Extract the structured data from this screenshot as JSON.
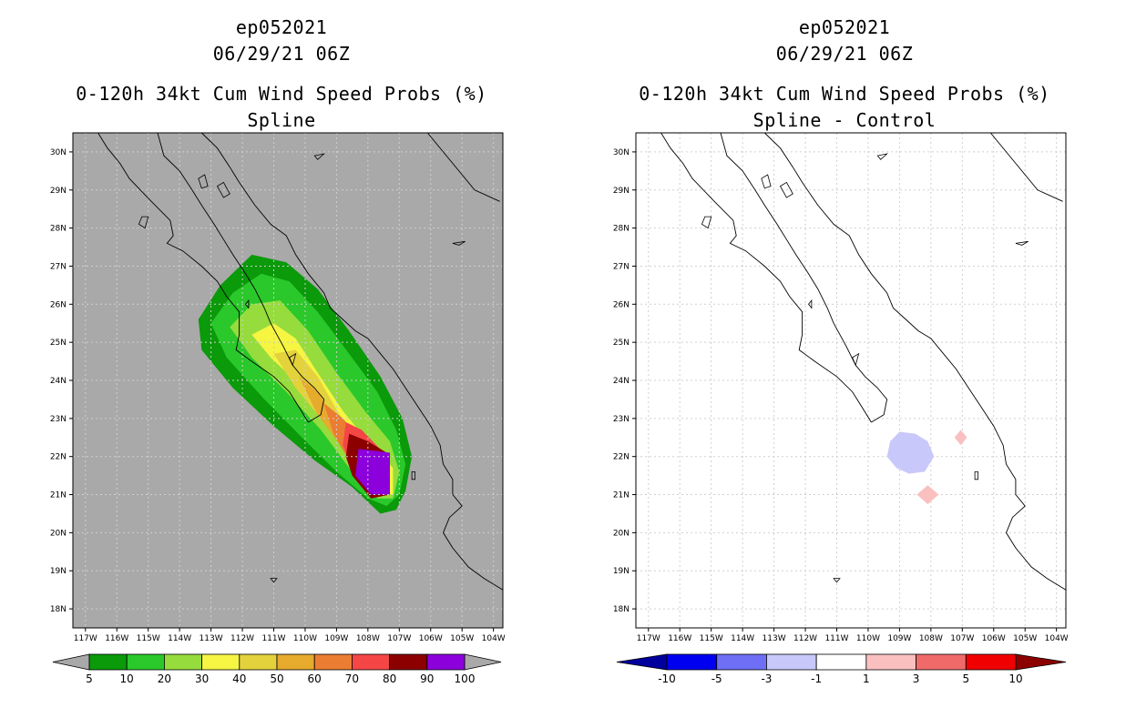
{
  "colors": {
    "land_sea_bg": "#a9a9a9",
    "map_bg_right": "#ffffff",
    "grid": "#cfcfcf"
  },
  "left": {
    "title1": "ep052021",
    "title2": "06/29/21 06Z",
    "title3": "0-120h 34kt Cum Wind Speed Probs (%)",
    "title4": "Spline"
  },
  "right": {
    "title1": "ep052021",
    "title2": "06/29/21 06Z",
    "title3": "0-120h 34kt Cum Wind Speed Probs (%)",
    "title4": "Spline - Control"
  },
  "axes": {
    "lon_labels": [
      "117W",
      "116W",
      "115W",
      "114W",
      "113W",
      "112W",
      "111W",
      "110W",
      "109W",
      "108W",
      "107W",
      "106W",
      "105W",
      "104W"
    ],
    "lat_labels": [
      "30N",
      "29N",
      "28N",
      "27N",
      "26N",
      "25N",
      "24N",
      "23N",
      "22N",
      "21N",
      "20N",
      "19N",
      "18N"
    ]
  },
  "chart_data": [
    {
      "type": "heatmap",
      "title": "0-120h 34kt Cum Wind Speed Probs (%)",
      "subtitle": "Spline",
      "xlim": [
        -117.4,
        -103.7
      ],
      "ylim": [
        17.5,
        30.5
      ],
      "legend": "bottom",
      "levels": [
        5,
        10,
        20,
        30,
        40,
        50,
        60,
        70,
        80,
        90,
        100
      ],
      "level_colors": [
        "#0a9a0a",
        "#2ac82a",
        "#96dc3c",
        "#f5f542",
        "#e3d23c",
        "#e6aa2d",
        "#eb7d32",
        "#f54646",
        "#8c0000",
        "#8c00dc"
      ]
    },
    {
      "type": "heatmap",
      "title": "0-120h 34kt Cum Wind Speed Probs (%)",
      "subtitle": "Spline - Control",
      "xlim": [
        -117.4,
        -103.7
      ],
      "ylim": [
        17.5,
        30.5
      ],
      "legend": "bottom",
      "levels": [
        -10,
        -5,
        -3,
        -1,
        1,
        3,
        5,
        10
      ],
      "level_colors": [
        "#00009c",
        "#0000f0",
        "#6f6ff5",
        "#c8c8fa",
        "#ffffff",
        "#fac0c0",
        "#f06a6a",
        "#f00000",
        "#8c0000"
      ]
    }
  ]
}
